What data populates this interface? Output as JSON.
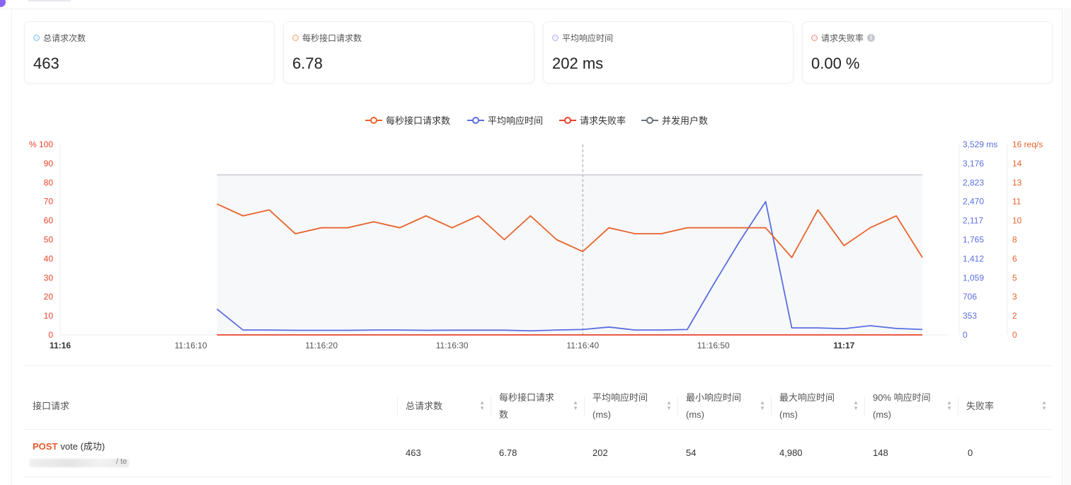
{
  "stats": [
    {
      "label": "总请求次数",
      "value": "463",
      "dot_color": "#7cc4f0"
    },
    {
      "label": "每秒接口请求数",
      "value": "6.78",
      "dot_color": "#f0a878"
    },
    {
      "label": "平均响应时间",
      "value": "202 ms",
      "dot_color": "#b0b4f0"
    },
    {
      "label": "请求失败率",
      "value": "0.00 %",
      "dot_color": "#f09090",
      "info_icon": "info-icon"
    }
  ],
  "legend": [
    {
      "label": "每秒接口请求数",
      "color": "#e8632c"
    },
    {
      "label": "平均响应时间",
      "color": "#5b6ee1"
    },
    {
      "label": "请求失败率",
      "color": "#e8432c"
    },
    {
      "label": "并发用户数",
      "color": "#6b717b"
    }
  ],
  "chart_data": {
    "type": "line",
    "x_ticks": [
      "11:16",
      "11:16:10",
      "11:16:20",
      "11:16:30",
      "11:16:40",
      "11:16:50",
      "11:17"
    ],
    "x_ticks_bold": [
      true,
      false,
      false,
      false,
      false,
      false,
      true
    ],
    "left_axis": {
      "unit": "%",
      "ticks": [
        "% 100",
        "90",
        "80",
        "70",
        "60",
        "50",
        "40",
        "30",
        "20",
        "10",
        "0"
      ],
      "color": "#e8432c",
      "max": 100
    },
    "right_axis_ms": {
      "ticks": [
        "3,529 ms",
        "3,176",
        "2,823",
        "2,470",
        "2,117",
        "1,765",
        "1,412",
        "1,059",
        "706",
        "353",
        "0"
      ],
      "color": "#5b6ee1",
      "max": 3529
    },
    "right_axis_rps": {
      "ticks": [
        "16 req/s",
        "14",
        "13",
        "11",
        "10",
        "8",
        "6",
        "5",
        "3",
        "2",
        "0"
      ],
      "color": "#e8632c",
      "max": 16
    },
    "x_seconds": [
      12,
      14,
      16,
      18,
      20,
      22,
      24,
      26,
      28,
      30,
      32,
      34,
      36,
      38,
      40,
      42,
      44,
      46,
      48,
      50,
      52,
      54,
      56,
      58,
      60,
      62,
      64,
      66
    ],
    "series": [
      {
        "name": "每秒接口请求数",
        "axis": "rps",
        "values": [
          11,
          10,
          10.5,
          8.5,
          9,
          9,
          9.5,
          9,
          10,
          9,
          10,
          8,
          10,
          8,
          7,
          9,
          8.5,
          8.5,
          9,
          9,
          9,
          9,
          6.5,
          10.5,
          7.5,
          9,
          10,
          6.5
        ]
      },
      {
        "name": "平均响应时间",
        "axis": "ms",
        "values": [
          480,
          90,
          90,
          85,
          85,
          85,
          90,
          90,
          85,
          88,
          88,
          88,
          75,
          90,
          100,
          145,
          90,
          90,
          100,
          930,
          1730,
          2470,
          130,
          130,
          115,
          170,
          120,
          100
        ]
      },
      {
        "name": "请求失败率",
        "axis": "pct",
        "values": [
          0,
          0,
          0,
          0,
          0,
          0,
          0,
          0,
          0,
          0,
          0,
          0,
          0,
          0,
          0,
          0,
          0,
          0,
          0,
          0,
          0,
          0,
          0,
          0,
          0,
          0,
          0,
          0
        ]
      },
      {
        "name": "并发用户数",
        "axis": "pct",
        "values": [
          84,
          84,
          84,
          84,
          84,
          84,
          84,
          84,
          84,
          84,
          84,
          84,
          84,
          84,
          84,
          84,
          84,
          84,
          84,
          84,
          84,
          84,
          84,
          84,
          84,
          84,
          84,
          84
        ]
      }
    ],
    "crosshair_x_seconds": 40,
    "legend_position": "top-center"
  },
  "table": {
    "headers": [
      {
        "line1": "接口请求",
        "line2": "",
        "sortable": false
      },
      {
        "line1": "总请求数",
        "line2": "",
        "sortable": true
      },
      {
        "line1": "每秒接口请求",
        "line2": "数",
        "sortable": true
      },
      {
        "line1": "平均响应时间",
        "line2": "(ms)",
        "sortable": true
      },
      {
        "line1": "最小响应时间",
        "line2": "(ms)",
        "sortable": true
      },
      {
        "line1": "最大响应时间",
        "line2": "(ms)",
        "sortable": true
      },
      {
        "line1": "90% 响应时间",
        "line2": "(ms)",
        "sortable": true
      },
      {
        "line1": "失败率",
        "line2": "",
        "sortable": true
      }
    ],
    "rows": [
      {
        "method": "POST",
        "name": "vote (成功)",
        "path_fragment": "/ te",
        "cells": [
          "463",
          "6.78",
          "202",
          "54",
          "4,980",
          "148",
          "0"
        ]
      }
    ]
  }
}
